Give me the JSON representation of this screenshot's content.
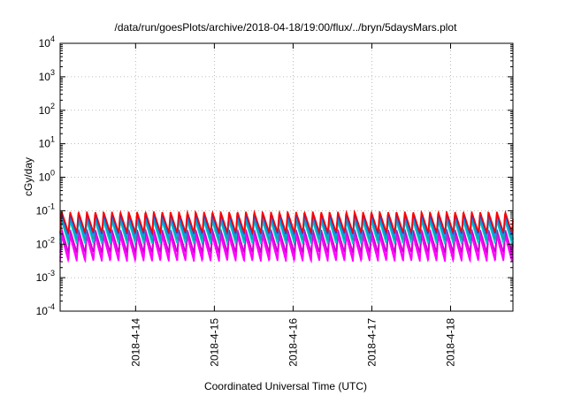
{
  "chart_data": {
    "type": "line",
    "title": "/data/run/goesPlots/archive/2018-04-18/19:00/flux/../bryn/5daysMars.plot",
    "xlabel": "Coordinated Universal Time (UTC)",
    "ylabel": "cGy/day",
    "yscale": "log",
    "ylim": [
      0.0001,
      10000
    ],
    "xlim": [
      "2018-04-13T01:00",
      "2018-04-18T19:00"
    ],
    "y_ticks": [
      {
        "value": 0.0001,
        "base": "10",
        "exp": "-4"
      },
      {
        "value": 0.001,
        "base": "10",
        "exp": "-3"
      },
      {
        "value": 0.01,
        "base": "10",
        "exp": "-2"
      },
      {
        "value": 0.1,
        "base": "10",
        "exp": "-1"
      },
      {
        "value": 1,
        "base": "10",
        "exp": "0"
      },
      {
        "value": 10,
        "base": "10",
        "exp": "1"
      },
      {
        "value": 100,
        "base": "10",
        "exp": "2"
      },
      {
        "value": 1000,
        "base": "10",
        "exp": "3"
      },
      {
        "value": 10000,
        "base": "10",
        "exp": "4"
      }
    ],
    "x_ticks": [
      {
        "value": "2018-04-14T00:00",
        "label": "2018-4-14"
      },
      {
        "value": "2018-04-15T00:00",
        "label": "2018-4-15"
      },
      {
        "value": "2018-04-16T00:00",
        "label": "2018-4-16"
      },
      {
        "value": "2018-04-17T00:00",
        "label": "2018-4-17"
      },
      {
        "value": "2018-04-18T00:00",
        "label": "2018-4-18"
      }
    ],
    "grid": true,
    "legend": "none",
    "oscillation_period_hours": 2.55,
    "series": [
      {
        "color": "#ff00ff",
        "peak": 0.018,
        "trough": 0.003
      },
      {
        "color": "#ff00ff",
        "peak": 0.022,
        "trough": 0.0038
      },
      {
        "color": "#cc00cc",
        "peak": 0.028,
        "trough": 0.0055
      },
      {
        "color": "#00cccc",
        "peak": 0.05,
        "trough": 0.01
      },
      {
        "color": "#00aaaa",
        "peak": 0.06,
        "trough": 0.013
      },
      {
        "color": "#1e90ff",
        "peak": 0.07,
        "trough": 0.017
      },
      {
        "color": "#2244cc",
        "peak": 0.08,
        "trough": 0.02
      },
      {
        "color": "#ff0000",
        "peak": 0.095,
        "trough": 0.022
      }
    ]
  }
}
